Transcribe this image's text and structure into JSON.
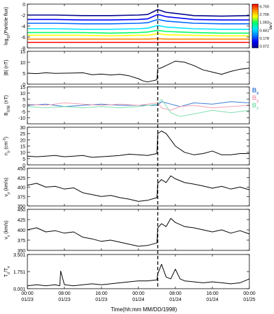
{
  "figure": {
    "xlabel": "Time(hh:mm MM/DD/1998)",
    "x_ticks": [
      {
        "time": "00:00",
        "date": "01/23"
      },
      {
        "time": "08:00",
        "date": "01/23"
      },
      {
        "time": "16:00",
        "date": "01/23"
      },
      {
        "time": "00:00",
        "date": "01/24"
      },
      {
        "time": "08:00",
        "date": "01/24"
      },
      {
        "time": "16:00",
        "date": "01/24"
      },
      {
        "time": "00:00",
        "date": "01/25"
      }
    ],
    "x_range_hours": [
      0,
      48
    ],
    "event_marker_hours": 28.2
  },
  "colorbar": {
    "unit": "MeV",
    "ticks": [
      "6.700",
      "2.706",
      "1.093",
      "0.441",
      "0.178",
      "0.072"
    ],
    "colors": [
      "#ff0000",
      "#ff8c00",
      "#ffff00",
      "#00ff66",
      "#00e5ff",
      "#0080ff",
      "#0000ff",
      "#00008b"
    ]
  },
  "chart_data": [
    {
      "type": "line",
      "panel": "particle-flux",
      "ylabel": "log10(Particle flux)",
      "ylim": [
        -8,
        0
      ],
      "yticks": [
        "0",
        "-2",
        "-4",
        "-6",
        "-8"
      ],
      "series": [
        {
          "energy": "0.072 MeV",
          "color": "#00008b",
          "x": [
            0,
            6,
            12,
            18,
            24,
            26,
            28.2,
            30,
            36,
            42,
            48
          ],
          "values": [
            -2.0,
            -2.0,
            -2.1,
            -2.1,
            -2.0,
            -1.9,
            -1.0,
            -1.5,
            -2.1,
            -2.2,
            -2.1
          ]
        },
        {
          "energy": "0.112 MeV",
          "color": "#0000ff",
          "x": [
            0,
            6,
            12,
            18,
            24,
            26,
            28.2,
            30,
            36,
            42,
            48
          ],
          "values": [
            -2.8,
            -2.8,
            -2.9,
            -2.9,
            -2.8,
            -2.7,
            -1.9,
            -2.3,
            -2.8,
            -2.9,
            -2.9
          ]
        },
        {
          "energy": "0.178 MeV",
          "color": "#0066ff",
          "x": [
            0,
            6,
            12,
            18,
            24,
            26,
            28.2,
            30,
            36,
            42,
            48
          ],
          "values": [
            -3.5,
            -3.5,
            -3.6,
            -3.6,
            -3.5,
            -3.4,
            -2.8,
            -3.1,
            -3.5,
            -3.6,
            -3.6
          ]
        },
        {
          "energy": "0.441 MeV",
          "color": "#00e5ff",
          "x": [
            0,
            6,
            12,
            18,
            24,
            26,
            28.2,
            30,
            36,
            42,
            48
          ],
          "values": [
            -4.5,
            -4.5,
            -4.6,
            -4.6,
            -4.5,
            -4.4,
            -3.9,
            -4.2,
            -4.5,
            -4.6,
            -4.6
          ]
        },
        {
          "energy": "0.7 MeV",
          "color": "#00ff66",
          "x": [
            0,
            6,
            12,
            18,
            24,
            26,
            28.2,
            30,
            36,
            42,
            48
          ],
          "values": [
            -5.2,
            -5.2,
            -5.2,
            -5.3,
            -5.2,
            -5.1,
            -4.8,
            -5.0,
            -5.2,
            -5.3,
            -5.3
          ]
        },
        {
          "energy": "1.093 MeV",
          "color": "#ffff00",
          "x": [
            0,
            6,
            12,
            18,
            24,
            26,
            28.2,
            30,
            36,
            42,
            48
          ],
          "values": [
            -5.7,
            -5.7,
            -5.7,
            -5.8,
            -5.7,
            -5.7,
            -5.4,
            -5.6,
            -5.7,
            -5.8,
            -5.8
          ]
        },
        {
          "energy": "2.706 MeV",
          "color": "#ff8c00",
          "x": [
            0,
            6,
            12,
            18,
            24,
            26,
            28.2,
            30,
            36,
            42,
            48
          ],
          "values": [
            -6.4,
            -6.4,
            -6.4,
            -6.4,
            -6.4,
            -6.4,
            -6.3,
            -6.4,
            -6.4,
            -6.4,
            -6.4
          ]
        },
        {
          "energy": "6.700 MeV",
          "color": "#ff0000",
          "x": [
            0,
            6,
            12,
            18,
            24,
            26,
            28.2,
            30,
            36,
            42,
            48
          ],
          "values": [
            -7.0,
            -7.0,
            -7.0,
            -7.0,
            -7.0,
            -7.0,
            -7.0,
            -7.0,
            -7.0,
            -7.0,
            -7.0
          ]
        }
      ]
    },
    {
      "type": "line",
      "panel": "magnetic-field",
      "ylabel": "|B| (nT)",
      "ylim": [
        0,
        15
      ],
      "yticks": [
        "0",
        "5",
        "10",
        "15"
      ],
      "series": [
        {
          "color": "#000000",
          "x": [
            0,
            2,
            4,
            6,
            8,
            10,
            12,
            14,
            16,
            18,
            20,
            22,
            24,
            25,
            26,
            27,
            28,
            28.2,
            29,
            30,
            32,
            34,
            36,
            38,
            40,
            42,
            44,
            46,
            48
          ],
          "values": [
            5.0,
            4.8,
            5.2,
            4.9,
            5.0,
            5.1,
            5.2,
            4.3,
            4.6,
            4.2,
            4.5,
            3.8,
            2.5,
            1.5,
            1.0,
            1.5,
            2.0,
            7.0,
            7.5,
            8.5,
            10.5,
            10.0,
            8.5,
            6.5,
            5.5,
            4.5,
            5.8,
            6.8,
            7.3
          ]
        }
      ]
    },
    {
      "type": "line",
      "panel": "magnetic-components",
      "ylabel": "B_GSE (nT)",
      "ylim": [
        -15,
        15
      ],
      "yticks": [
        "-10",
        "-5",
        "0",
        "5",
        "10",
        "15"
      ],
      "series": [
        {
          "name": "Bx",
          "color": "#3a7bd5",
          "x": [
            0,
            4,
            8,
            12,
            16,
            20,
            24,
            28.2,
            29,
            31,
            33,
            36,
            40,
            44,
            48
          ],
          "values": [
            0,
            1,
            -1,
            0,
            1,
            0,
            0,
            0,
            3,
            1,
            -1,
            2,
            1,
            3,
            2
          ]
        },
        {
          "name": "By",
          "color": "#f0a0b0",
          "x": [
            0,
            4,
            8,
            12,
            16,
            20,
            24,
            28.2,
            29,
            31,
            33,
            36,
            40,
            44,
            48
          ],
          "values": [
            1,
            0,
            2,
            1,
            0,
            1,
            0,
            2,
            -2,
            -4,
            -1,
            0,
            -2,
            -1,
            0
          ]
        },
        {
          "name": "Bz",
          "color": "#7fdfb0",
          "x": [
            0,
            4,
            8,
            12,
            16,
            20,
            24,
            28.2,
            29,
            31,
            33,
            36,
            40,
            44,
            48
          ],
          "values": [
            -1,
            -2,
            -1,
            -2,
            -1,
            -2,
            -1,
            1,
            5,
            -6,
            -9,
            -7,
            -4,
            -6,
            -4
          ]
        }
      ]
    },
    {
      "type": "line",
      "panel": "density",
      "ylabel": "n_p (cm^-3)",
      "ylim": [
        0,
        30
      ],
      "yticks": [
        "0",
        "5",
        "10",
        "15",
        "20",
        "25",
        "30"
      ],
      "series": [
        {
          "color": "#000000",
          "x": [
            0,
            2,
            4,
            6,
            8,
            10,
            12,
            14,
            16,
            18,
            20,
            22,
            24,
            26,
            28,
            28.2,
            29,
            30,
            31,
            32,
            34,
            36,
            38,
            40,
            42,
            44,
            46,
            48
          ],
          "values": [
            7,
            6.5,
            7,
            7.5,
            6.5,
            7,
            7.5,
            6,
            6.5,
            7,
            7.5,
            8.5,
            8,
            7.5,
            9,
            25,
            27,
            25,
            20,
            15,
            10,
            8,
            9,
            11,
            8,
            8,
            9,
            9
          ]
        }
      ]
    },
    {
      "type": "line",
      "panel": "speed",
      "ylabel": "v_p (km/s)",
      "ylim": [
        350,
        450
      ],
      "yticks": [
        "350",
        "375",
        "400",
        "425",
        "450"
      ],
      "series": [
        {
          "color": "#000000",
          "x": [
            0,
            2,
            4,
            6,
            8,
            10,
            12,
            14,
            16,
            18,
            20,
            22,
            24,
            26,
            28,
            28.2,
            29,
            30,
            31,
            32,
            34,
            36,
            38,
            40,
            42,
            44,
            46,
            48
          ],
          "values": [
            405,
            410,
            400,
            402,
            395,
            398,
            385,
            380,
            375,
            378,
            372,
            368,
            362,
            365,
            372,
            410,
            420,
            412,
            430,
            422,
            412,
            408,
            403,
            397,
            402,
            395,
            400,
            393
          ]
        }
      ]
    },
    {
      "type": "line",
      "panel": "velocity-x",
      "ylabel": "v_x (km/s)",
      "ylim": [
        350,
        450
      ],
      "yticks": [
        "350",
        "375",
        "400",
        "425",
        "450"
      ],
      "series": [
        {
          "color": "#000000",
          "x": [
            0,
            2,
            4,
            6,
            8,
            10,
            12,
            14,
            16,
            18,
            20,
            22,
            24,
            26,
            28,
            28.2,
            29,
            30,
            31,
            32,
            34,
            36,
            38,
            40,
            42,
            44,
            46,
            48
          ],
          "values": [
            400,
            405,
            395,
            398,
            392,
            395,
            382,
            378,
            372,
            375,
            370,
            365,
            360,
            362,
            368,
            405,
            415,
            408,
            428,
            418,
            408,
            405,
            400,
            395,
            400,
            392,
            398,
            390
          ]
        }
      ]
    },
    {
      "type": "line",
      "panel": "temperature-ratio",
      "ylabel": "Tp/Te",
      "ylim": [
        0,
        3.5
      ],
      "yticks": [
        "0.001",
        "1.751",
        "3.501"
      ],
      "series": [
        {
          "color": "#000000",
          "x": [
            0,
            2,
            4,
            6,
            7,
            7.2,
            8,
            10,
            12,
            14,
            16,
            18,
            20,
            22,
            24,
            26,
            28,
            28.2,
            29,
            30,
            31,
            32,
            33,
            34,
            36,
            38,
            40,
            42,
            44,
            46,
            48
          ],
          "values": [
            0.3,
            0.4,
            0.3,
            0.4,
            0.3,
            1.8,
            0.4,
            0.3,
            0.4,
            0.5,
            0.4,
            0.5,
            0.6,
            0.7,
            0.8,
            0.8,
            0.9,
            1.5,
            2.5,
            1.2,
            1.0,
            2.0,
            1.0,
            0.8,
            0.7,
            0.6,
            0.7,
            0.6,
            0.5,
            0.6,
            1.0
          ]
        }
      ]
    }
  ]
}
